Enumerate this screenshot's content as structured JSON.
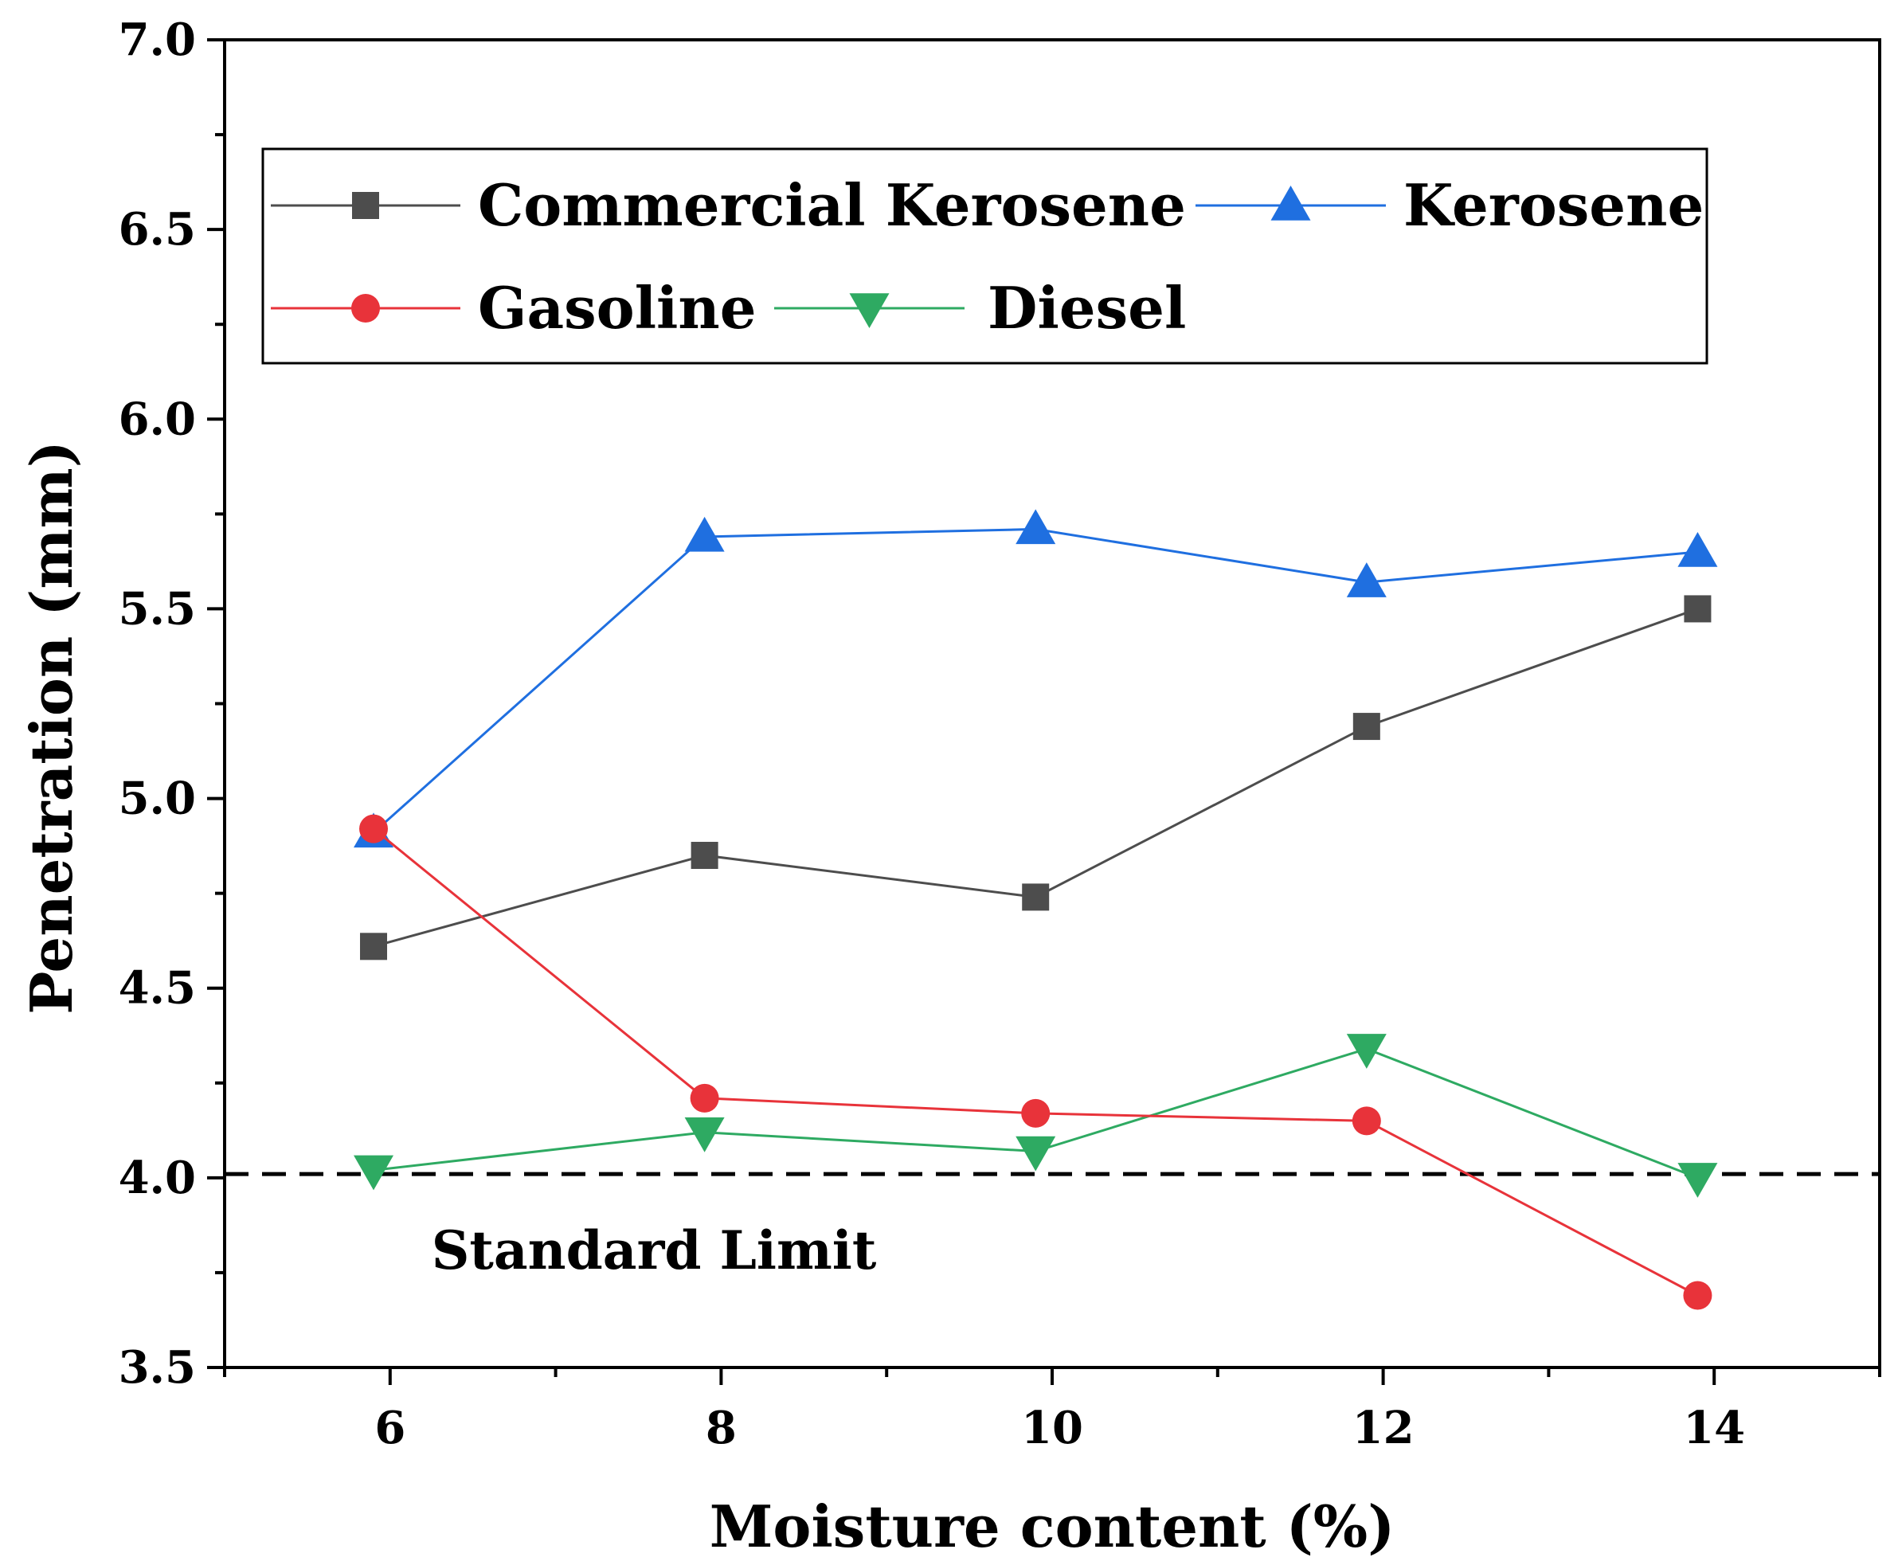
{
  "chart_data": {
    "type": "line",
    "title": "",
    "xlabel": "Moisture content (%)",
    "ylabel": "Penetration (mm)",
    "xlim": [
      5,
      15
    ],
    "ylim": [
      3.5,
      7.0
    ],
    "xticks": [
      6,
      8,
      10,
      12,
      14
    ],
    "xtick_labels": [
      "6",
      "8",
      "10",
      "12",
      "14"
    ],
    "yticks": [
      3.5,
      4.0,
      4.5,
      5.0,
      5.5,
      6.0,
      6.5,
      7.0
    ],
    "ytick_labels": [
      "3.5",
      "4.0",
      "4.5",
      "5.0",
      "5.5",
      "6.0",
      "6.5",
      "7.0"
    ],
    "x": [
      5.9,
      7.9,
      9.9,
      11.9,
      13.9
    ],
    "series": [
      {
        "name": "Commercial Kerosene",
        "color": "#4d4d4d",
        "marker": "square",
        "values": [
          4.61,
          4.85,
          4.74,
          5.19,
          5.5
        ]
      },
      {
        "name": "Kerosene",
        "color": "#1f6fe0",
        "marker": "triangle-up",
        "values": [
          4.91,
          5.69,
          5.71,
          5.57,
          5.65
        ]
      },
      {
        "name": "Gasoline",
        "color": "#e8333a",
        "marker": "circle",
        "values": [
          4.92,
          4.21,
          4.17,
          4.15,
          3.69
        ]
      },
      {
        "name": "Diesel",
        "color": "#2eaa62",
        "marker": "triangle-down",
        "values": [
          4.02,
          4.12,
          4.07,
          4.34,
          4.0
        ]
      }
    ],
    "reference_line": {
      "label": "Standard Limit",
      "y": 4.01,
      "style": "dashed",
      "color": "#000000"
    },
    "legend": {
      "position": "top-left",
      "columns": 2
    },
    "grid": false
  }
}
